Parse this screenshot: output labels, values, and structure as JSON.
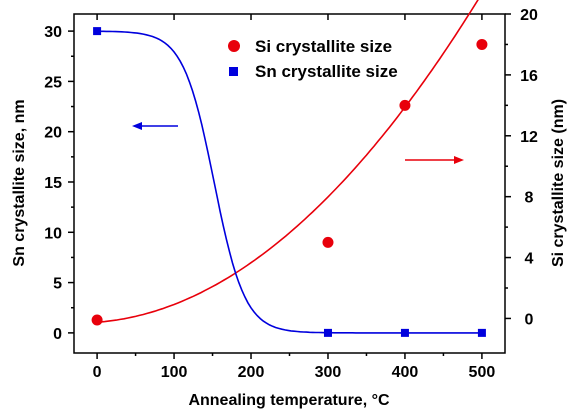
{
  "chart_data": {
    "type": "scatter",
    "xlabel": "Annealing temperature, °C",
    "ylabel_left": "Sn crystallite size, nm",
    "ylabel_right": "Si crystallite size (nm)",
    "xlim": [
      -30,
      530
    ],
    "ylim_left": [
      -2,
      31.7
    ],
    "ylim_right": [
      -2.27,
      20
    ],
    "x_ticks": [
      0,
      100,
      200,
      300,
      400,
      500
    ],
    "y_left_ticks": [
      0,
      5,
      10,
      15,
      20,
      25,
      30
    ],
    "y_right_ticks": [
      0,
      4,
      8,
      12,
      16,
      20
    ],
    "grid": false,
    "legend_position": "top-center",
    "series": [
      {
        "name": "Si crystallite size",
        "axis": "right",
        "color": "#e8000b",
        "marker": "circle",
        "x": [
          0,
          300,
          400,
          500
        ],
        "y": [
          -0.1,
          5.0,
          14.0,
          18.0
        ]
      },
      {
        "name": "Sn crystallite size",
        "axis": "left",
        "color": "#0000dd",
        "marker": "square",
        "x": [
          0,
          300,
          400,
          500
        ],
        "y": [
          30.0,
          0.0,
          0.0,
          0.0
        ]
      }
    ],
    "annotations": [
      {
        "type": "arrow",
        "direction": "left",
        "color": "#0000dd",
        "points_to_axis": "left"
      },
      {
        "type": "arrow",
        "direction": "right",
        "color": "#e8000b",
        "points_to_axis": "right"
      }
    ]
  }
}
